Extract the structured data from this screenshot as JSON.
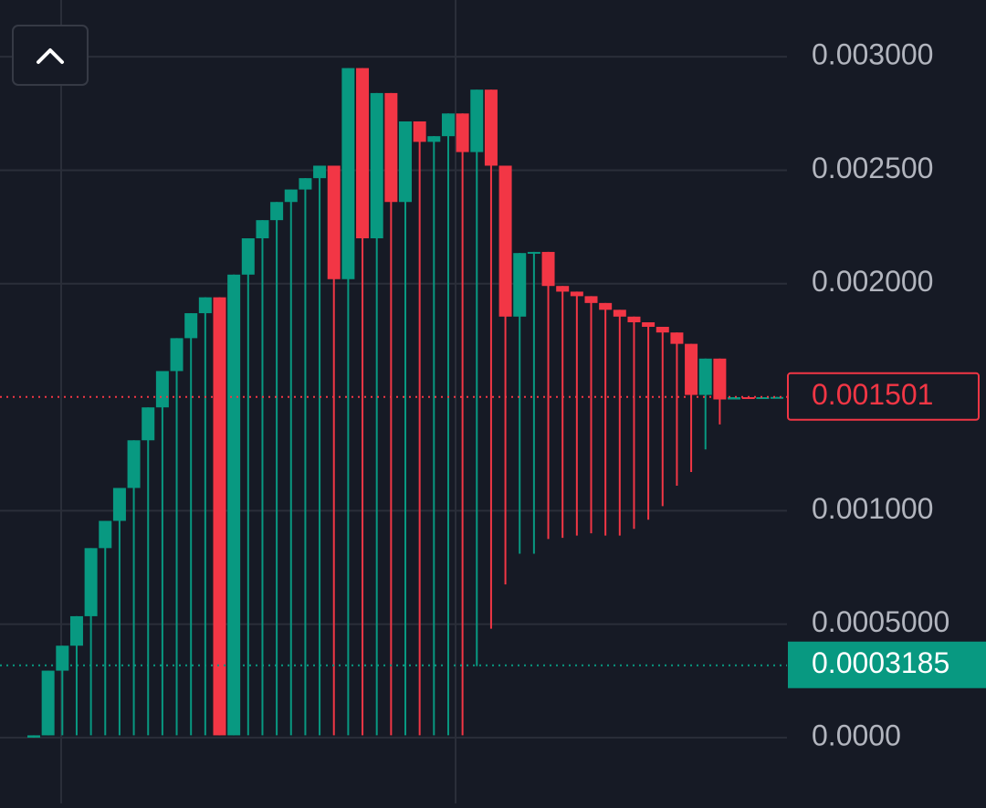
{
  "chart_data": {
    "type": "candlestick",
    "open": [
      0,
      1e-05,
      0.000295,
      0.000405,
      0.000535,
      0.000835,
      0.000955,
      0.0011,
      0.00131,
      0.001455,
      0.001615,
      0.00176,
      0.00187,
      0.00194,
      1e-05,
      0.00204,
      0.0022,
      0.00228,
      0.00236,
      0.002415,
      0.002465,
      0.00252,
      0.00202,
      0.00295,
      0.0022,
      0.00284,
      0.00236,
      0.002715,
      0.002625,
      0.00265,
      0.00275,
      0.00258,
      0.002855,
      0.00252,
      0.001855,
      0.002135,
      0.00214,
      0.00199,
      0.001965,
      0.001945,
      0.001915,
      0.001885,
      0.001855,
      0.00183,
      0.00181,
      0.001785,
      0.001735,
      0.00151,
      0.00167,
      0.00149,
      0.0015,
      0.001499,
      0.0015
    ],
    "high": [
      1e-05,
      0.000295,
      0.000405,
      0.000535,
      0.000835,
      0.000955,
      0.0011,
      0.00131,
      0.001455,
      0.001615,
      0.00176,
      0.00187,
      0.00194,
      0.00194,
      0.00204,
      0.0022,
      0.00228,
      0.00236,
      0.002415,
      0.002465,
      0.00252,
      0.00252,
      0.00295,
      0.00295,
      0.00284,
      0.00284,
      0.002715,
      0.002715,
      0.00265,
      0.00275,
      0.00275,
      0.002855,
      0.002855,
      0.00252,
      0.002135,
      0.00214,
      0.00214,
      0.00199,
      0.001965,
      0.001945,
      0.001915,
      0.001885,
      0.001855,
      0.00183,
      0.00181,
      0.001785,
      0.001735,
      0.00167,
      0.00167,
      0.0015,
      0.0015,
      0.0015,
      0.001501
    ],
    "low": [
      0,
      1e-05,
      1e-05,
      1e-05,
      1e-05,
      1e-05,
      1e-05,
      1e-05,
      1e-05,
      1e-05,
      1e-05,
      1e-05,
      1e-05,
      1e-05,
      1e-05,
      1e-05,
      1e-05,
      1e-05,
      1e-05,
      1e-05,
      1e-05,
      1e-05,
      1e-05,
      1e-05,
      1e-05,
      1e-05,
      1e-05,
      1e-05,
      1e-05,
      1e-05,
      1e-05,
      0.000315,
      0.00048,
      0.000675,
      0.00081,
      0.00081,
      0.000875,
      0.00088,
      0.00089,
      0.0009,
      0.00089,
      0.00089,
      0.00092,
      0.00096,
      0.00102,
      0.00111,
      0.00117,
      0.00127,
      0.00138,
      0.00149,
      0.001499,
      0.001499,
      0.0015
    ],
    "close": [
      1e-05,
      0.000295,
      0.000405,
      0.000535,
      0.000835,
      0.000955,
      0.0011,
      0.00131,
      0.001455,
      0.001615,
      0.00176,
      0.00187,
      0.00194,
      1e-05,
      0.00204,
      0.0022,
      0.00228,
      0.00236,
      0.002415,
      0.002465,
      0.00252,
      0.00202,
      0.00295,
      0.0022,
      0.00284,
      0.00236,
      0.002715,
      0.002625,
      0.00265,
      0.00275,
      0.00258,
      0.002855,
      0.00252,
      0.001855,
      0.002135,
      0.00214,
      0.00199,
      0.001965,
      0.001945,
      0.001915,
      0.001885,
      0.001855,
      0.00183,
      0.00181,
      0.001785,
      0.001735,
      0.00151,
      0.00167,
      0.00149,
      0.0015,
      0.001499,
      0.0015,
      0.001501
    ],
    "up_color": "#089981",
    "down_color": "#f23645",
    "ylim": [
      -0.00029,
      0.00325
    ],
    "yticks": [
      {
        "value": 0,
        "label": "0.0000"
      },
      {
        "value": 0.0005,
        "label": "0.0005000"
      },
      {
        "value": 0.001,
        "label": "0.001000"
      },
      {
        "value": 0.002,
        "label": "0.002000"
      },
      {
        "value": 0.0025,
        "label": "0.002500"
      },
      {
        "value": 0.003,
        "label": "0.003000"
      }
    ],
    "grid": true,
    "price_lines": [
      {
        "value": 0.001501,
        "label": "0.001501",
        "color": "#f23645",
        "style": "outline"
      },
      {
        "value": 0.0003185,
        "label": "0.0003185",
        "color": "#089981",
        "style": "filled"
      }
    ]
  }
}
